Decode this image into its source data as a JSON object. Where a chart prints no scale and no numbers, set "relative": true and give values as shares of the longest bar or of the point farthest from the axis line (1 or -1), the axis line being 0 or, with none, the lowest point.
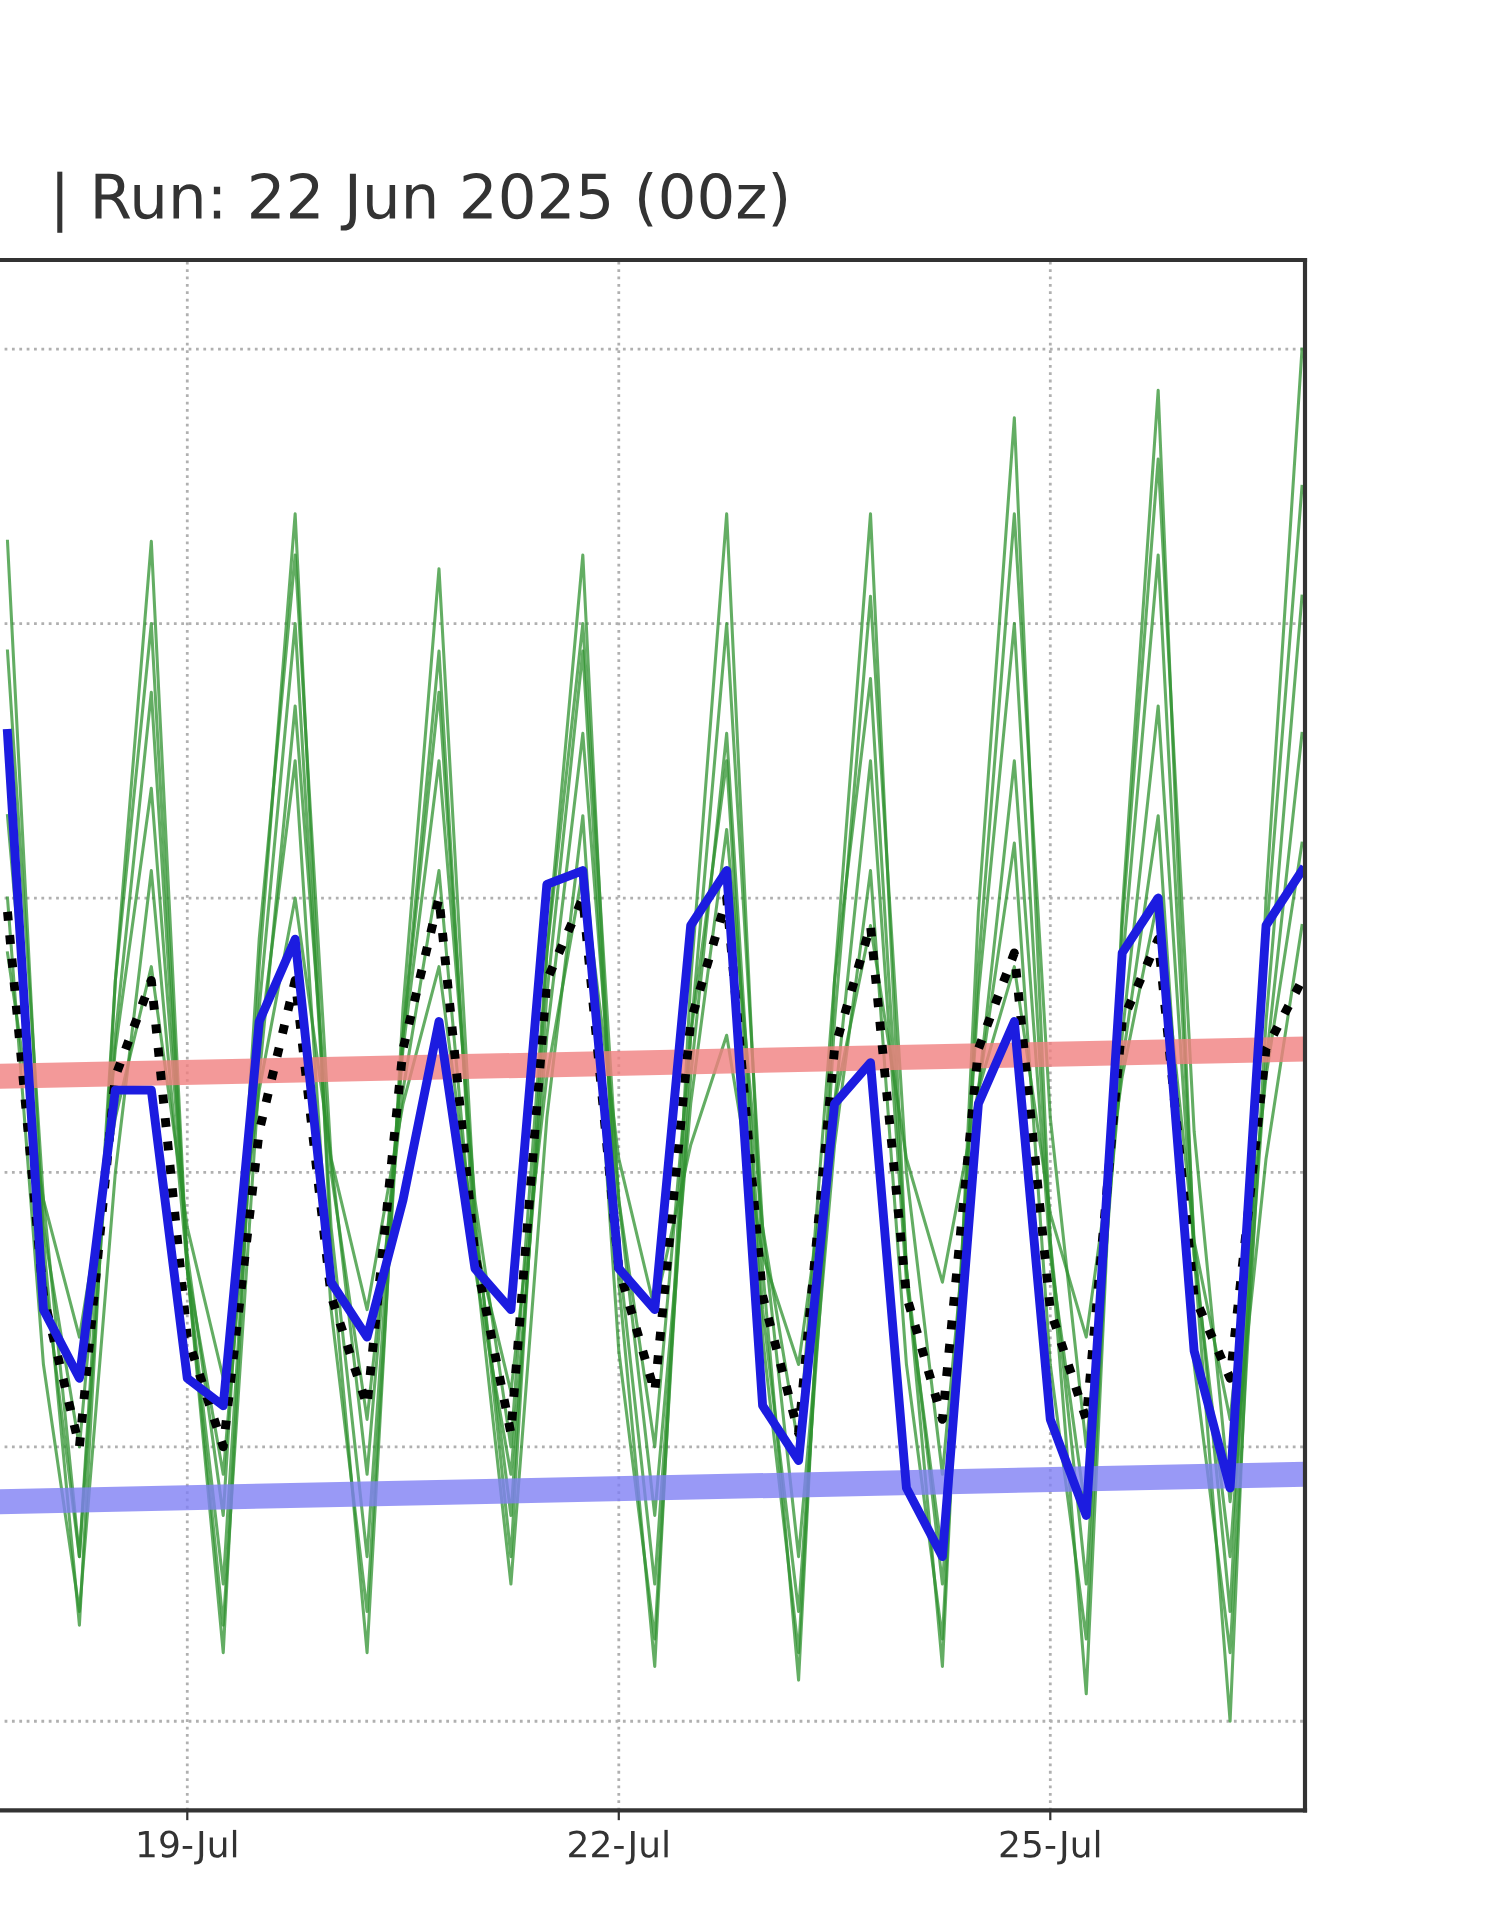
{
  "chart_data": {
    "type": "line",
    "title": "| Run: 22 Jun 2025 (00z)",
    "relative": true,
    "grid": true,
    "line_style": "solid",
    "marker": "none",
    "x": [
      "2025-07-17T18:00",
      "2025-07-18T00:00",
      "2025-07-18T06:00",
      "2025-07-18T12:00",
      "2025-07-18T18:00",
      "2025-07-19T00:00",
      "2025-07-19T06:00",
      "2025-07-19T12:00",
      "2025-07-19T18:00",
      "2025-07-20T00:00",
      "2025-07-20T06:00",
      "2025-07-20T12:00",
      "2025-07-20T18:00",
      "2025-07-21T00:00",
      "2025-07-21T06:00",
      "2025-07-21T12:00",
      "2025-07-21T18:00",
      "2025-07-22T00:00",
      "2025-07-22T06:00",
      "2025-07-22T12:00",
      "2025-07-22T18:00",
      "2025-07-23T00:00",
      "2025-07-23T06:00",
      "2025-07-23T12:00",
      "2025-07-23T18:00",
      "2025-07-24T00:00",
      "2025-07-24T06:00",
      "2025-07-24T12:00",
      "2025-07-24T18:00",
      "2025-07-25T00:00",
      "2025-07-25T06:00",
      "2025-07-25T12:00",
      "2025-07-25T18:00",
      "2025-07-26T00:00",
      "2025-07-26T06:00",
      "2025-07-26T12:00",
      "2025-07-26T18:00"
    ],
    "xlim": [
      "2025-07-17T16:00",
      "2025-07-26T18:30"
    ],
    "xticks": [
      {
        "value": "2025-07-19",
        "label": "19-Jul"
      },
      {
        "value": "2025-07-22",
        "label": "22-Jul"
      },
      {
        "value": "2025-07-25",
        "label": "25-Jul"
      }
    ],
    "series": [
      {
        "color": "#2f922f",
        "values": [
          0.86,
          0.35,
          0.07,
          0.54,
          0.86,
          0.33,
          0.05,
          0.55,
          0.88,
          0.34,
          0.05,
          0.52,
          0.84,
          0.37,
          0.12,
          0.56,
          0.85,
          0.32,
          0.04,
          0.54,
          0.88,
          0.33,
          0.03,
          0.54,
          0.88,
          0.33,
          0.04,
          0.59,
          0.95,
          0.35,
          0.02,
          0.59,
          0.97,
          0.34,
          0,
          0.6,
          1.0
        ]
      },
      {
        "color": "#2f922f",
        "values": [
          0.72,
          0.33,
          0.12,
          0.5,
          0.75,
          0.33,
          0.1,
          0.52,
          0.8,
          0.36,
          0.12,
          0.5,
          0.75,
          0.36,
          0.15,
          0.53,
          0.78,
          0.34,
          0.1,
          0.47,
          0.72,
          0.3,
          0.08,
          0.45,
          0.7,
          0.32,
          0.12,
          0.53,
          0.8,
          0.35,
          0.1,
          0.55,
          0.85,
          0.35,
          0.08,
          0.57,
          0.9
        ]
      },
      {
        "color": "#2f922f",
        "values": [
          0.66,
          0.36,
          0.2,
          0.49,
          0.68,
          0.34,
          0.15,
          0.57,
          0.85,
          0.41,
          0.18,
          0.49,
          0.7,
          0.38,
          0.2,
          0.56,
          0.8,
          0.38,
          0.15,
          0.45,
          0.65,
          0.36,
          0.2,
          0.54,
          0.76,
          0.33,
          0.1,
          0.46,
          0.7,
          0.34,
          0.15,
          0.5,
          0.74,
          0.34,
          0.12,
          0.48,
          0.72
        ]
      },
      {
        "color": "#2f922f",
        "values": [
          0.56,
          0.38,
          0.28,
          0.44,
          0.55,
          0.36,
          0.25,
          0.46,
          0.6,
          0.41,
          0.3,
          0.45,
          0.55,
          0.35,
          0.24,
          0.47,
          0.62,
          0.41,
          0.3,
          0.42,
          0.5,
          0.34,
          0.26,
          0.45,
          0.58,
          0.41,
          0.32,
          0.46,
          0.55,
          0.37,
          0.28,
          0.47,
          0.6,
          0.35,
          0.22,
          0.47,
          0.64
        ]
      },
      {
        "color": "#2f922f",
        "values": [
          0.6,
          0.26,
          0.08,
          0.4,
          0.62,
          0.33,
          0.18,
          0.49,
          0.7,
          0.3,
          0.08,
          0.5,
          0.78,
          0.34,
          0.1,
          0.44,
          0.66,
          0.27,
          0.06,
          0.5,
          0.8,
          0.36,
          0.12,
          0.42,
          0.62,
          0.26,
          0.06,
          0.55,
          0.88,
          0.44,
          0.2,
          0.48,
          0.66,
          0.26,
          0.05,
          0.51,
          0.82
        ]
      },
      {
        "color": "#2f922f",
        "values": [
          0.78,
          0.38,
          0.12,
          0.54,
          0.8,
          0.33,
          0.07,
          0.47,
          0.74,
          0.4,
          0.22,
          0.46,
          0.62,
          0.33,
          0.18,
          0.5,
          0.72,
          0.38,
          0.2,
          0.5,
          0.7,
          0.28,
          0.05,
          0.51,
          0.82,
          0.4,
          0.18,
          0.46,
          0.64,
          0.26,
          0.06,
          0.58,
          0.92,
          0.43,
          0.16,
          0.41,
          0.58
        ]
      },
      {
        "color": "#f08080",
        "x": [
          "2025-07-17T16:00",
          "2025-07-26T18:30"
        ],
        "values": [
          0.47,
          0.49
        ]
      },
      {
        "color": "#8080f4",
        "x": [
          "2025-07-17T16:00",
          "2025-07-26T18:30"
        ],
        "values": [
          0.16,
          0.18
        ]
      },
      {
        "color": "#000000",
        "line_style": "dotted",
        "values": [
          0.59,
          0.31,
          0.2,
          0.47,
          0.54,
          0.28,
          0.2,
          0.43,
          0.54,
          0.31,
          0.23,
          0.49,
          0.6,
          0.34,
          0.21,
          0.54,
          0.6,
          0.33,
          0.24,
          0.51,
          0.6,
          0.31,
          0.21,
          0.49,
          0.58,
          0.31,
          0.22,
          0.49,
          0.56,
          0.3,
          0.22,
          0.51,
          0.57,
          0.31,
          0.25,
          0.49,
          0.54
        ]
      },
      {
        "color": "#1c1ce0",
        "values": [
          0.72,
          0.3,
          0.25,
          0.46,
          0.46,
          0.25,
          0.23,
          0.51,
          0.57,
          0.32,
          0.28,
          0.38,
          0.51,
          0.33,
          0.3,
          0.61,
          0.62,
          0.33,
          0.3,
          0.58,
          0.62,
          0.23,
          0.19,
          0.45,
          0.48,
          0.17,
          0.12,
          0.45,
          0.51,
          0.22,
          0.15,
          0.56,
          0.6,
          0.27,
          0.17,
          0.58,
          0.62
        ]
      }
    ]
  }
}
